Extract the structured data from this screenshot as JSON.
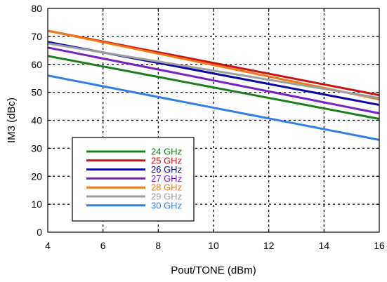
{
  "chart_data": {
    "type": "line",
    "title": "",
    "xlabel": "Pout/TONE (dBm)",
    "ylabel": "IM3 (dBc)",
    "xlim": [
      4,
      16
    ],
    "ylim": [
      0,
      80
    ],
    "xticks": [
      4,
      6,
      8,
      10,
      12,
      14,
      16
    ],
    "yticks": [
      0,
      10,
      20,
      30,
      40,
      50,
      60,
      70,
      80
    ],
    "grid": true,
    "legend_position": "bottom-left",
    "x": [
      4,
      16
    ],
    "series": [
      {
        "name": "24 GHz",
        "color": "#1a7f1a",
        "values": [
          63,
          40.5
        ]
      },
      {
        "name": "25 GHz",
        "color": "#cc1111",
        "values": [
          72,
          49
        ]
      },
      {
        "name": "26 GHz",
        "color": "#0a0aa6",
        "values": [
          68,
          45.5
        ]
      },
      {
        "name": "27 GHz",
        "color": "#7a1fc4",
        "values": [
          66,
          42.5
        ]
      },
      {
        "name": "28 GHz",
        "color": "#f07a1a",
        "values": [
          72,
          47.5
        ]
      },
      {
        "name": "29 GHz",
        "color": "#9e9e9e",
        "values": [
          67.5,
          48
        ]
      },
      {
        "name": "30 GHz",
        "color": "#2f7fe6",
        "values": [
          56,
          33
        ]
      }
    ]
  }
}
